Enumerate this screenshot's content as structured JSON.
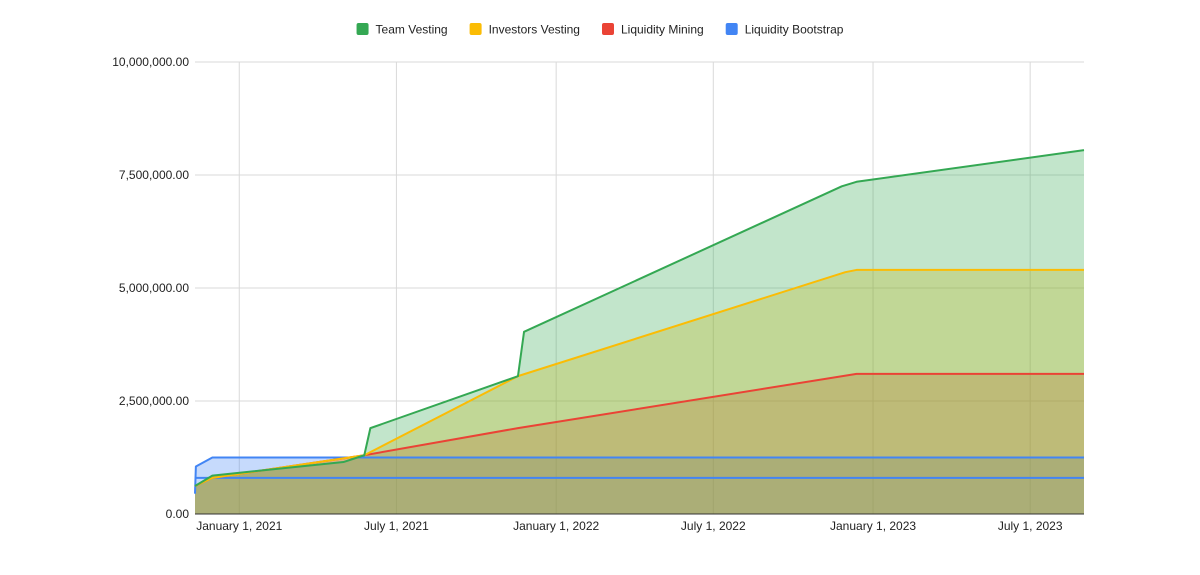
{
  "chart_data": {
    "type": "area",
    "stacked": true,
    "x_axis_type": "date",
    "xlim": [
      "2020-11-11",
      "2023-09-01"
    ],
    "ylim": [
      0,
      10000000
    ],
    "yticks": [
      0,
      2500000,
      5000000,
      7500000,
      10000000
    ],
    "ytick_labels": [
      "0.00",
      "2,500,000.00",
      "5,000,000.00",
      "7,500,000.00",
      "10,000,000.00"
    ],
    "xticks": [
      "2021-01-01",
      "2021-07-01",
      "2022-01-01",
      "2022-07-01",
      "2023-01-01",
      "2023-07-01"
    ],
    "xtick_labels": [
      "January 1, 2021",
      "July 1, 2021",
      "January 1, 2022",
      "July 1, 2022",
      "January 1, 2023",
      "July 1, 2023"
    ],
    "grid": true,
    "legend_position": "top",
    "series": [
      {
        "name": "Liquidity Bootstrap",
        "color": "#4285F4",
        "points": [
          [
            "2020-11-11",
            450000
          ],
          [
            "2020-11-12",
            1050000
          ],
          [
            "2020-12-01",
            1250000
          ],
          [
            "2023-09-01",
            1250000
          ]
        ]
      },
      {
        "name": "Liquidity Mining",
        "color": "#EA4335",
        "points": [
          [
            "2020-11-11",
            620000
          ],
          [
            "2020-12-01",
            800000
          ],
          [
            "2021-05-25",
            1300000
          ],
          [
            "2021-11-18",
            1900000
          ],
          [
            "2022-12-13",
            3100000
          ],
          [
            "2023-09-01",
            3100000
          ]
        ]
      },
      {
        "name": "Investors Vesting",
        "color": "#FBBC04",
        "points": [
          [
            "2020-11-11",
            620000
          ],
          [
            "2020-12-01",
            800000
          ],
          [
            "2021-05-25",
            1300000
          ],
          [
            "2021-11-18",
            3050000
          ],
          [
            "2022-11-30",
            5350000
          ],
          [
            "2022-12-13",
            5400000
          ],
          [
            "2023-09-01",
            5400000
          ]
        ]
      },
      {
        "name": "Team Vesting",
        "color": "#34A853",
        "points": [
          [
            "2020-11-11",
            620000
          ],
          [
            "2020-12-01",
            850000
          ],
          [
            "2021-05-01",
            1150000
          ],
          [
            "2021-05-25",
            1300000
          ],
          [
            "2021-06-01",
            1900000
          ],
          [
            "2021-11-18",
            3050000
          ],
          [
            "2021-11-25",
            4030000
          ],
          [
            "2022-11-26",
            7250000
          ],
          [
            "2022-12-13",
            7350000
          ],
          [
            "2023-09-01",
            8050000
          ]
        ]
      }
    ],
    "legend_order": [
      "Team Vesting",
      "Investors Vesting",
      "Liquidity Mining",
      "Liquidity Bootstrap"
    ],
    "reference_lines": [
      {
        "y": 800000,
        "color": "#4285F4"
      }
    ]
  }
}
